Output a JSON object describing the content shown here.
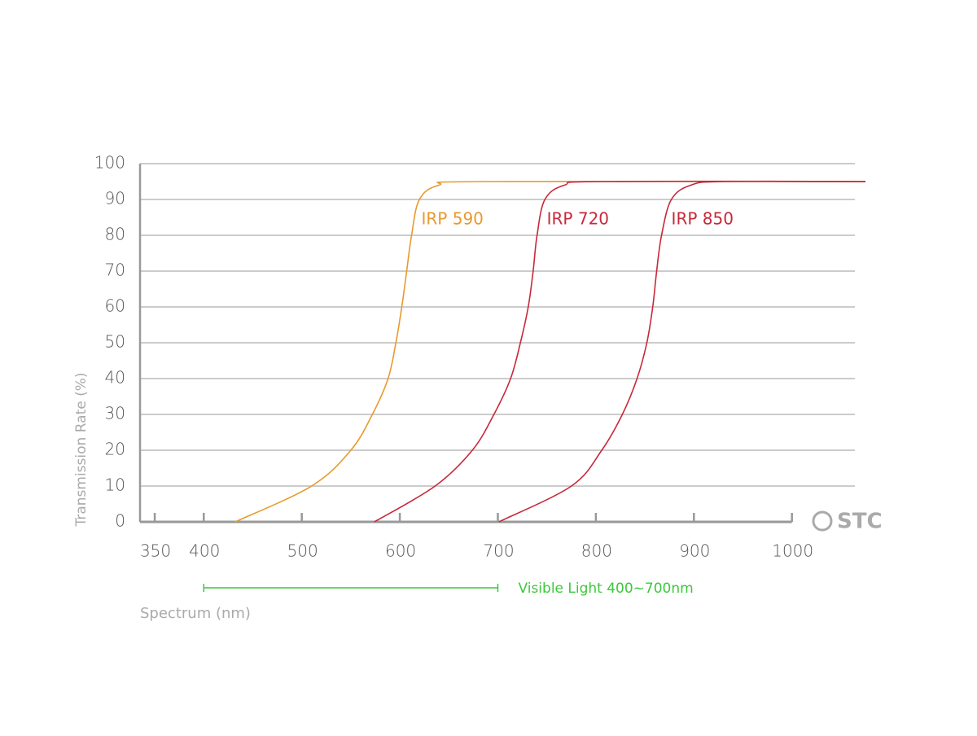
{
  "chart_data": {
    "type": "line",
    "x_label": "Spectrum (nm)",
    "y_label": "Transmission Rate (%)",
    "xlim": [
      335,
      1075
    ],
    "ylim": [
      0,
      100
    ],
    "xticks": [
      350,
      400,
      500,
      600,
      700,
      800,
      900,
      1000
    ],
    "yticks": [
      0,
      10,
      20,
      30,
      40,
      50,
      60,
      70,
      80,
      90,
      100
    ],
    "grid": true,
    "series": [
      {
        "name": "IRP 590",
        "color": "#e89a2c",
        "x": [
          432,
          510,
          550,
          572,
          588,
          596,
          602,
          607,
          612,
          620,
          640,
          683,
          1075
        ],
        "values": [
          0,
          10,
          20,
          30,
          40,
          50,
          60,
          70,
          80,
          90,
          94,
          95,
          95
        ]
      },
      {
        "name": "IRP 720",
        "color": "#c8283a",
        "x": [
          574,
          636,
          674,
          696,
          713,
          723,
          731,
          736,
          740,
          748,
          768,
          806,
          1075
        ],
        "values": [
          0,
          10,
          20,
          30,
          40,
          50,
          60,
          70,
          80,
          90,
          94,
          95,
          95
        ]
      },
      {
        "name": "IRP 850",
        "color": "#c8283a",
        "x": [
          701,
          775,
          806,
          827,
          842,
          852,
          858,
          862,
          867,
          877,
          897,
          931,
          1075
        ],
        "values": [
          0,
          10,
          20,
          30,
          40,
          50,
          60,
          70,
          80,
          90,
          94,
          95,
          95
        ]
      }
    ],
    "annotation": {
      "text": "Visible Light 400~700nm",
      "range": [
        400,
        700
      ],
      "color": "#3cc83c"
    },
    "logo": "STC"
  }
}
